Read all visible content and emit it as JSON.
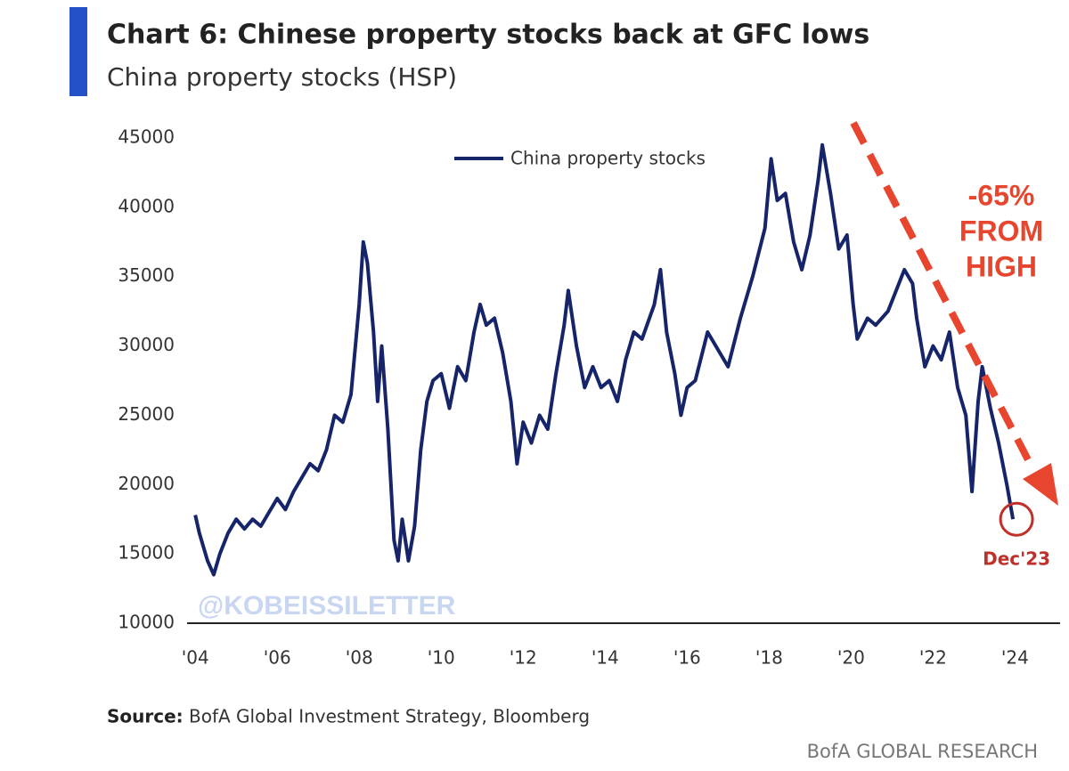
{
  "chart_data": {
    "type": "line",
    "title": "Chart 6: Chinese property stocks back at GFC lows",
    "subtitle": "China property stocks (HSP)",
    "source_label": "Source:",
    "source": "BofA Global Investment Strategy, Bloomberg",
    "branding": "BofA GLOBAL RESEARCH",
    "watermark": "@KOBEISSILETTER",
    "annotations": [
      "-65%",
      "FROM",
      "HIGH"
    ],
    "point_label": "Dec'23",
    "legend": "top",
    "xlim": [
      2003.8,
      2025.1
    ],
    "ylim": [
      10000,
      45000
    ],
    "yticks": [
      10000,
      15000,
      20000,
      25000,
      30000,
      35000,
      40000,
      45000
    ],
    "xticks": [
      {
        "value": 2004,
        "label": "'04"
      },
      {
        "value": 2006,
        "label": "'06"
      },
      {
        "value": 2008,
        "label": "'08"
      },
      {
        "value": 2010,
        "label": "'10"
      },
      {
        "value": 2012,
        "label": "'12"
      },
      {
        "value": 2014,
        "label": "'14"
      },
      {
        "value": 2016,
        "label": "'16"
      },
      {
        "value": 2018,
        "label": "'18"
      },
      {
        "value": 2020,
        "label": "'20"
      },
      {
        "value": 2022,
        "label": "'22"
      },
      {
        "value": 2024,
        "label": "'24"
      }
    ],
    "x": [
      2004.0,
      2004.1,
      2004.3,
      2004.45,
      2004.6,
      2004.8,
      2005.0,
      2005.2,
      2005.4,
      2005.6,
      2005.8,
      2006.0,
      2006.2,
      2006.4,
      2006.6,
      2006.8,
      2007.0,
      2007.2,
      2007.4,
      2007.6,
      2007.8,
      2008.0,
      2008.1,
      2008.2,
      2008.35,
      2008.45,
      2008.55,
      2008.7,
      2008.85,
      2008.95,
      2009.05,
      2009.2,
      2009.35,
      2009.5,
      2009.65,
      2009.8,
      2010.0,
      2010.2,
      2010.4,
      2010.6,
      2010.8,
      2010.95,
      2011.1,
      2011.3,
      2011.5,
      2011.7,
      2011.85,
      2012.0,
      2012.2,
      2012.4,
      2012.6,
      2012.8,
      2013.0,
      2013.1,
      2013.3,
      2013.5,
      2013.7,
      2013.9,
      2014.1,
      2014.3,
      2014.5,
      2014.7,
      2014.9,
      2015.2,
      2015.35,
      2015.5,
      2015.7,
      2015.85,
      2016.0,
      2016.2,
      2016.5,
      2016.8,
      2017.0,
      2017.3,
      2017.6,
      2017.9,
      2018.05,
      2018.2,
      2018.4,
      2018.6,
      2018.8,
      2019.0,
      2019.2,
      2019.3,
      2019.5,
      2019.7,
      2019.9,
      2020.05,
      2020.15,
      2020.4,
      2020.6,
      2020.9,
      2021.1,
      2021.3,
      2021.5,
      2021.6,
      2021.8,
      2022.0,
      2022.2,
      2022.4,
      2022.6,
      2022.8,
      2022.95,
      2023.1,
      2023.2,
      2023.4,
      2023.6,
      2023.8,
      2023.95
    ],
    "series": [
      {
        "name": "China property stocks",
        "color": "#16246a",
        "values": [
          17800,
          16500,
          14500,
          13500,
          15000,
          16500,
          17500,
          16800,
          17500,
          17000,
          18000,
          19000,
          18200,
          19500,
          20500,
          21500,
          21000,
          22500,
          25000,
          24500,
          26500,
          33000,
          37500,
          36000,
          31000,
          26000,
          30000,
          24000,
          16000,
          14500,
          17500,
          14500,
          17000,
          22500,
          26000,
          27500,
          28000,
          25500,
          28500,
          27500,
          31000,
          33000,
          31500,
          32000,
          29500,
          26000,
          21500,
          24500,
          23000,
          25000,
          24000,
          28000,
          31500,
          34000,
          30000,
          27000,
          28500,
          27000,
          27500,
          26000,
          29000,
          31000,
          30500,
          33000,
          35500,
          31000,
          28000,
          25000,
          27000,
          27500,
          31000,
          29500,
          28500,
          32000,
          35000,
          38500,
          43500,
          40500,
          41000,
          37500,
          35500,
          38000,
          42000,
          44500,
          41000,
          37000,
          38000,
          33000,
          30500,
          32000,
          31500,
          32500,
          34000,
          35500,
          34500,
          32000,
          28500,
          30000,
          29000,
          31000,
          27000,
          25000,
          19500,
          26000,
          28500,
          25500,
          23000,
          20000,
          17500
        ]
      }
    ]
  }
}
